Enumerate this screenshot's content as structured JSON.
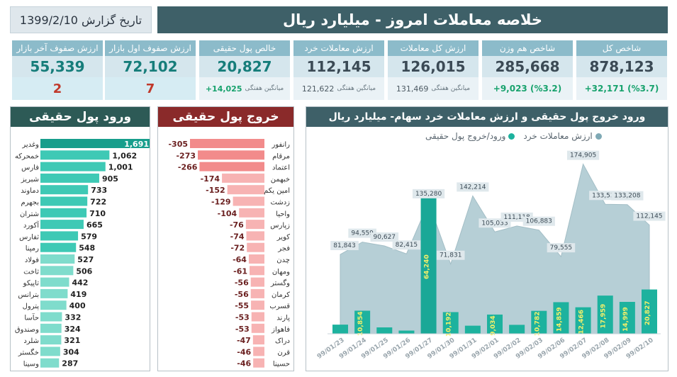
{
  "header": {
    "title": "خلاصه معاملات امروز - میلیارد ریال",
    "report_date": "تاریخ گزارش  1399/2/10"
  },
  "cards": [
    {
      "label": "شاخص کل",
      "value": "878,123",
      "change": "+32,171 (%3.7)"
    },
    {
      "label": "شاخص هم وزن",
      "value": "285,668",
      "change": "+9,023 (%3.2)"
    },
    {
      "label": "ارزش کل معاملات",
      "value": "126,015",
      "avg_label": "میانگین هفتگی",
      "avg_value": "131,469"
    },
    {
      "label": "ارزش معاملات خرد",
      "value": "112,145",
      "avg_label": "میانگین هفتگی",
      "avg_value": "121,622"
    },
    {
      "label": "خالص پول حقیقی",
      "value": "20,827",
      "avg_label": "میانگین هفتگی",
      "avg_value": "+14,025"
    },
    {
      "label": "ارزش صفوف اول بازار",
      "value": "72,102",
      "count": "7"
    },
    {
      "label": "ارزش صفوف آخر بازار",
      "value": "55,339",
      "count": "2"
    }
  ],
  "inflow": {
    "title": "ورود پول حقیقی",
    "color": "#1db29e",
    "items": [
      {
        "name": "وغدیر",
        "value": "1,691"
      },
      {
        "name": "خمحرکه",
        "value": "1,062"
      },
      {
        "name": "فارس",
        "value": "1,001"
      },
      {
        "name": "شبریز",
        "value": "905"
      },
      {
        "name": "دماوند",
        "value": "733"
      },
      {
        "name": "بجهرم",
        "value": "722"
      },
      {
        "name": "شتران",
        "value": "710"
      },
      {
        "name": "آکورد",
        "value": "665"
      },
      {
        "name": "ثفارس",
        "value": "579"
      },
      {
        "name": "رمپنا",
        "value": "548"
      },
      {
        "name": "فولاد",
        "value": "527"
      },
      {
        "name": "ثاخت",
        "value": "506"
      },
      {
        "name": "تاپیکو",
        "value": "442"
      },
      {
        "name": "بترانس",
        "value": "419"
      },
      {
        "name": "پترول",
        "value": "400"
      },
      {
        "name": "حآسا",
        "value": "332"
      },
      {
        "name": "وصندوق",
        "value": "324"
      },
      {
        "name": "شلرد",
        "value": "321"
      },
      {
        "name": "خگستر",
        "value": "304"
      },
      {
        "name": "وسینا",
        "value": "287"
      }
    ]
  },
  "outflow": {
    "title": "خروج پول حقیقی",
    "color": "#f28b8b",
    "items": [
      {
        "name": "رانفور",
        "value": "-305"
      },
      {
        "name": "مرقام",
        "value": "-273"
      },
      {
        "name": "اعتماد",
        "value": "-266"
      },
      {
        "name": "خبهمن",
        "value": "-174"
      },
      {
        "name": "امین یکم",
        "value": "-152"
      },
      {
        "name": "زدشت",
        "value": "-129"
      },
      {
        "name": "واحیا",
        "value": "-104"
      },
      {
        "name": "زپارس",
        "value": "-76"
      },
      {
        "name": "کویر",
        "value": "-74"
      },
      {
        "name": "فجر",
        "value": "-72"
      },
      {
        "name": "چدن",
        "value": "-64"
      },
      {
        "name": "ومهان",
        "value": "-61"
      },
      {
        "name": "وگستر",
        "value": "-56"
      },
      {
        "name": "کرمان",
        "value": "-56"
      },
      {
        "name": "قسرب",
        "value": "-55"
      },
      {
        "name": "پارند",
        "value": "-53"
      },
      {
        "name": "فاهواز",
        "value": "-53"
      },
      {
        "name": "دراک",
        "value": "-47"
      },
      {
        "name": "قرن",
        "value": "-46"
      },
      {
        "name": "حسینا",
        "value": "-46"
      }
    ]
  },
  "chart_data": {
    "type": "bar",
    "title": "ورود خروج پول حقیقی و ارزش معاملات خرد سهام- میلیارد ریال",
    "categories": [
      "99/01/23",
      "99/01/24",
      "99/01/25",
      "99/01/26",
      "99/01/27",
      "99/01/30",
      "99/01/31",
      "99/02/01",
      "99/02/02",
      "99/02/03",
      "99/02/06",
      "99/02/07",
      "99/02/08",
      "99/02/09",
      "99/02/10"
    ],
    "series": [
      {
        "name": "ارزش معاملات خرد",
        "type": "area",
        "color": "#a9c7cf",
        "values": [
          81843,
          94559,
          90627,
          82415,
          135280,
          71831,
          142214,
          105033,
          111118,
          106883,
          79555,
          174905,
          133539,
          133208,
          112145
        ],
        "labels": [
          "81,843",
          "94,559",
          "90,627",
          "82,415",
          "135,280",
          "71,831",
          "142,214",
          "105,033",
          "111,118",
          "106,883",
          "79,555",
          "174,905",
          "133,539",
          "133,208",
          "112,145"
        ]
      },
      {
        "name": "ورود/خروج پول حقیقی",
        "type": "bar",
        "color": "#1db29e",
        "values": [
          4300,
          10854,
          3000,
          1500,
          64240,
          10192,
          3800,
          9034,
          4200,
          10782,
          14859,
          12466,
          17959,
          14999,
          20827
        ],
        "labels": [
          "",
          "10,854",
          "",
          "",
          "64,240",
          "10,192",
          "",
          "9,034",
          "",
          "10,782",
          "14,859",
          "12,466",
          "17,959",
          "14,999",
          "20,827"
        ]
      }
    ],
    "legend": [
      "ارزش معاملات خرد",
      "ورود/خروج پول حقیقی"
    ]
  }
}
